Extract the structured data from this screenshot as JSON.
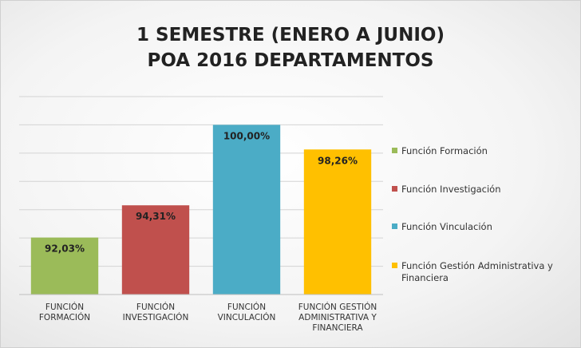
{
  "chart_data": {
    "type": "bar",
    "title": [
      "1 SEMESTRE (ENERO A JUNIO)",
      "POA 2016 DEPARTAMENTOS"
    ],
    "categories": [
      "FUNCIÓN FORMACIÓN",
      "FUNCIÓN INVESTIGACIÓN",
      "FUNCIÓN VINCULACIÓN",
      "FUNCIÓN GESTIÓN ADMINISTRATIVA Y FINANCIERA"
    ],
    "series": [
      {
        "name": "Función Formación",
        "color": "#9bbb59",
        "values": [
          92.03,
          null,
          null,
          null
        ],
        "value_labels": [
          "92,03%",
          null,
          null,
          null
        ]
      },
      {
        "name": "Función Investigación",
        "color": "#c0504d",
        "values": [
          null,
          94.31,
          null,
          null
        ],
        "value_labels": [
          null,
          "94,31%",
          null,
          null
        ]
      },
      {
        "name": "Función Vinculación",
        "color": "#4bacc6",
        "values": [
          null,
          null,
          100,
          null
        ],
        "value_labels": [
          null,
          null,
          "100,00%",
          null
        ]
      },
      {
        "name": "Función Gestión Administrativa y Financiera",
        "color": "#ffc000",
        "values": [
          null,
          null,
          null,
          98.26
        ],
        "value_labels": [
          null,
          null,
          null,
          "98,26%"
        ]
      }
    ],
    "ylim": [
      88,
      102
    ],
    "yticks": [
      88,
      90,
      92,
      94,
      96,
      98,
      100,
      102
    ],
    "grid": true,
    "legend": "right"
  }
}
